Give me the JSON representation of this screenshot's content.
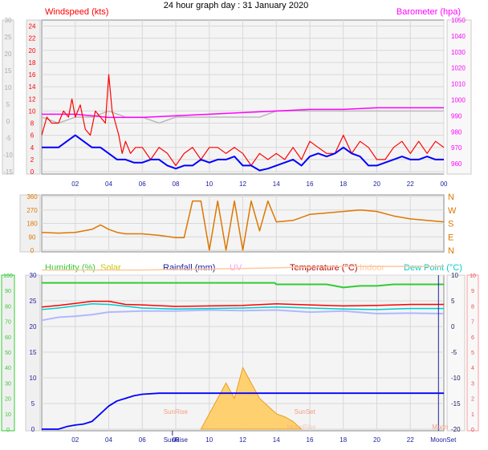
{
  "title": "24 hour graph day : 31 January 2020",
  "colors": {
    "wind": "#ff0000",
    "wind_avg": "#0000ff",
    "baro": "#ff00ff",
    "temp": "#ff0000",
    "dewpoint": "#00cccc",
    "indoor": "#ffc8a0",
    "humidity": "#33cc33",
    "rain": "#0000ff",
    "solar": "#e0a020",
    "direction": "#dd7700",
    "gust_scale": "#aaaaaa"
  },
  "chart_data": [
    {
      "type": "line",
      "series": [
        {
          "name": "Windspeed (kts)",
          "x": [
            0,
            0.3,
            0.6,
            1,
            1.3,
            1.6,
            1.8,
            2,
            2.3,
            2.6,
            2.9,
            3.2,
            3.5,
            3.8,
            4,
            4.2,
            4.4,
            4.6,
            4.8,
            5,
            5.3,
            5.6,
            6,
            6.5,
            7,
            7.5,
            8,
            8.5,
            9,
            9.5,
            10,
            10.5,
            11,
            11.5,
            12,
            12.5,
            13,
            13.5,
            14,
            14.5,
            15,
            15.5,
            16,
            16.5,
            17,
            17.5,
            18,
            18.5,
            19,
            19.5,
            20,
            20.5,
            21,
            21.5,
            22,
            22.5,
            23,
            23.5,
            24
          ],
          "values": [
            6,
            9,
            8,
            8,
            10,
            9,
            12,
            9,
            11,
            7,
            6,
            10,
            9,
            8,
            16,
            10,
            8,
            6,
            3,
            5,
            3,
            4,
            4,
            2,
            4,
            3,
            1,
            3,
            4,
            2,
            4,
            4,
            3,
            4,
            3,
            1,
            3,
            2,
            3,
            2,
            4,
            2,
            5,
            4,
            3,
            3,
            6,
            3,
            5,
            4,
            2,
            2,
            4,
            5,
            3,
            5,
            3,
            5,
            4
          ]
        },
        {
          "name": "Barometer (hpa)",
          "x": [
            0,
            2,
            4,
            6,
            8,
            10,
            12,
            14,
            16,
            18,
            20,
            22,
            24
          ],
          "values": [
            991,
            991,
            989,
            989,
            990,
            991,
            992,
            993,
            994,
            994,
            995,
            995,
            995
          ]
        },
        {
          "name": "",
          "x": [
            0,
            1,
            2,
            3,
            4,
            5,
            6,
            7,
            8,
            9,
            10,
            11,
            12,
            13,
            14,
            15,
            16,
            17,
            18,
            19,
            20,
            21,
            22,
            23,
            24
          ],
          "values": [
            9,
            8,
            9,
            9,
            10,
            9,
            9,
            8,
            9,
            9,
            9,
            9,
            9,
            9,
            10,
            10,
            10,
            10,
            10,
            10,
            10,
            10,
            10,
            10,
            10
          ]
        },
        {
          "name": "",
          "x": [
            0,
            0.5,
            1,
            1.5,
            2,
            2.5,
            3,
            3.5,
            4,
            4.5,
            5,
            5.5,
            6,
            6.5,
            7,
            7.5,
            8,
            8.5,
            9,
            9.5,
            10,
            10.5,
            11,
            11.5,
            12,
            12.5,
            13,
            13.5,
            14,
            14.5,
            15,
            15.5,
            16,
            16.5,
            17,
            17.5,
            18,
            18.5,
            19,
            19.5,
            20,
            20.5,
            21,
            21.5,
            22,
            22.5,
            23,
            23.5,
            24
          ],
          "values": [
            4,
            4,
            4,
            5,
            6,
            5,
            4,
            4,
            3,
            2,
            2,
            1.5,
            1.5,
            2,
            2,
            1,
            0.5,
            1,
            1,
            2,
            1.5,
            2,
            2,
            2.5,
            1,
            1,
            0.2,
            0.5,
            1,
            1.5,
            2,
            1,
            2.5,
            3,
            2.5,
            3,
            4,
            3,
            2.5,
            1,
            1,
            1.5,
            2,
            2.5,
            2,
            2,
            2.5,
            2,
            2
          ]
        }
      ],
      "axes": {
        "y_left": {
          "label": "Windspeed (kts)",
          "range": [
            0,
            25
          ],
          "ticks": [
            "0",
            "2",
            "4",
            "6",
            "8",
            "10",
            "12",
            "14",
            "16",
            "18",
            "20",
            "22",
            "24"
          ]
        },
        "y_outer": {
          "range": [
            -15,
            30
          ],
          "ticks": [
            "-15",
            "-10",
            "-5",
            "0",
            "5",
            "10",
            "15",
            "20",
            "25",
            "30"
          ]
        },
        "y_right": {
          "label": "Barometer (hpa)",
          "range": [
            955,
            1050
          ],
          "ticks": [
            "960",
            "970",
            "980",
            "990",
            "1000",
            "1010",
            "1020",
            "1030",
            "1040",
            "1050"
          ]
        },
        "x": {
          "range": [
            0,
            24
          ],
          "ticks": [
            "02",
            "04",
            "06",
            "08",
            "10",
            "12",
            "14",
            "16",
            "18",
            "20",
            "22",
            "00"
          ]
        }
      },
      "grid": true
    },
    {
      "type": "line",
      "series": [
        {
          "name": "",
          "x": [
            0,
            1,
            2,
            3,
            3.5,
            4,
            4.5,
            5,
            6,
            7,
            8,
            8.5,
            9,
            9.5,
            10,
            10.5,
            11,
            11.5,
            12,
            12.5,
            13,
            13.5,
            14,
            15,
            16,
            17,
            18,
            19,
            20,
            21,
            22,
            23,
            24
          ],
          "values": [
            120,
            115,
            120,
            140,
            170,
            140,
            120,
            110,
            110,
            100,
            85,
            85,
            330,
            330,
            0,
            330,
            0,
            330,
            0,
            330,
            130,
            330,
            190,
            200,
            240,
            250,
            260,
            270,
            260,
            230,
            210,
            200,
            190
          ]
        }
      ],
      "axes": {
        "y_left": {
          "range": [
            0,
            360
          ],
          "ticks": [
            "0",
            "90",
            "180",
            "270",
            "360"
          ]
        },
        "y_right": {
          "ticks": [
            "N",
            "W",
            "S",
            "E",
            "N"
          ]
        },
        "x": {
          "range": [
            0,
            24
          ]
        }
      }
    },
    {
      "type": "line",
      "series": [
        {
          "name": "Humidity (%)",
          "x": [
            0,
            6,
            12,
            13.9,
            14,
            17,
            17.5,
            18,
            19,
            20,
            21,
            22,
            24
          ],
          "values": [
            95,
            95,
            95,
            95,
            94,
            94,
            93,
            92,
            93,
            93,
            94,
            94,
            94
          ]
        },
        {
          "name": "Temperature (°C)",
          "x": [
            0,
            1,
            2,
            3,
            4,
            5,
            6,
            8,
            10,
            12,
            14,
            16,
            18,
            20,
            22,
            24
          ],
          "values": [
            3.8,
            4.1,
            4.5,
            4.9,
            4.9,
            4.3,
            4.2,
            3.9,
            4.0,
            4.1,
            4.4,
            4.2,
            4.0,
            4.1,
            4.3,
            4.3
          ]
        },
        {
          "name": "Indoor",
          "x": [
            0,
            6,
            12,
            18,
            24
          ],
          "values": [
            11,
            11,
            11.3,
            11.7,
            11.7
          ]
        },
        {
          "name": "Dew Point (°C)",
          "x": [
            0,
            1,
            2,
            3,
            4,
            6,
            8,
            10,
            12,
            14,
            16,
            18,
            20,
            22,
            24
          ],
          "values": [
            3.3,
            3.6,
            4.0,
            4.4,
            4.3,
            3.6,
            3.4,
            3.5,
            3.6,
            3.8,
            3.6,
            3.4,
            3.3,
            3.5,
            3.5
          ]
        },
        {
          "name": "",
          "x": [
            0,
            1,
            2,
            3,
            4,
            6,
            8,
            10,
            12,
            14,
            16,
            18,
            20,
            22,
            24
          ],
          "values": [
            1.2,
            1.8,
            2.0,
            2.3,
            2.8,
            3.0,
            3.0,
            3.2,
            3.1,
            3.2,
            2.8,
            3.0,
            2.5,
            2.6,
            2.5
          ]
        },
        {
          "name": "Rainfall (mm)",
          "x": [
            0,
            1,
            1.5,
            2,
            2.5,
            3,
            3.5,
            4,
            4.5,
            5,
            5.5,
            6,
            7,
            24
          ],
          "values": [
            0,
            0,
            0.5,
            0.8,
            1.0,
            1.5,
            3.0,
            4.5,
            5.5,
            6.0,
            6.5,
            6.8,
            7.0,
            7.0
          ]
        },
        {
          "name": "Solar",
          "x": [
            9.5,
            10,
            10.5,
            11,
            11.5,
            12,
            12.5,
            13,
            13.5,
            14,
            14.5,
            15,
            15.5
          ],
          "values": [
            0,
            1,
            2,
            3,
            2,
            4,
            3,
            2,
            1.5,
            1,
            0.8,
            0.5,
            0
          ]
        }
      ],
      "axes": {
        "y_left_humidity": {
          "label": "Humidity (%)",
          "range": [
            0,
            100
          ],
          "ticks": [
            "0",
            "10",
            "20",
            "30",
            "40",
            "50",
            "60",
            "70",
            "80",
            "90",
            "100"
          ]
        },
        "y_left_rain": {
          "label": "Rainfall (mm)",
          "range": [
            0,
            30
          ],
          "ticks": [
            "0",
            "5",
            "10",
            "15",
            "20",
            "25",
            "30"
          ]
        },
        "y_right_temp": {
          "label": "Temperature (°C)",
          "range": [
            -20,
            10
          ],
          "ticks": [
            "-20",
            "-15",
            "-10",
            "-5",
            "0",
            "5",
            "10"
          ]
        },
        "y_right_outer": {
          "range": [
            0,
            10
          ],
          "ticks": [
            "0",
            "1",
            "2",
            "3",
            "4",
            "5",
            "6",
            "7",
            "8",
            "9",
            "10"
          ]
        },
        "x": {
          "range": [
            0,
            24
          ],
          "ticks": [
            "02",
            "04",
            "06",
            "08",
            "10",
            "12",
            "14",
            "16",
            "18",
            "20",
            "22"
          ]
        }
      },
      "labels": [
        "Humidity (%)",
        "Solar",
        "Rainfall (mm)",
        "UV",
        "Temperature (°C)",
        "Indoor",
        "Dew Point (°C)"
      ],
      "annotations": {
        "sunrise": "SunRise",
        "sunset": "SunSet",
        "moonset": "MoonSet",
        "moonrise": "MoonRise",
        "moon": "Moon",
        "sunrise_hour": 7.8,
        "sunset_hour": 15.7,
        "moonset_hour": 23.2
      }
    }
  ]
}
